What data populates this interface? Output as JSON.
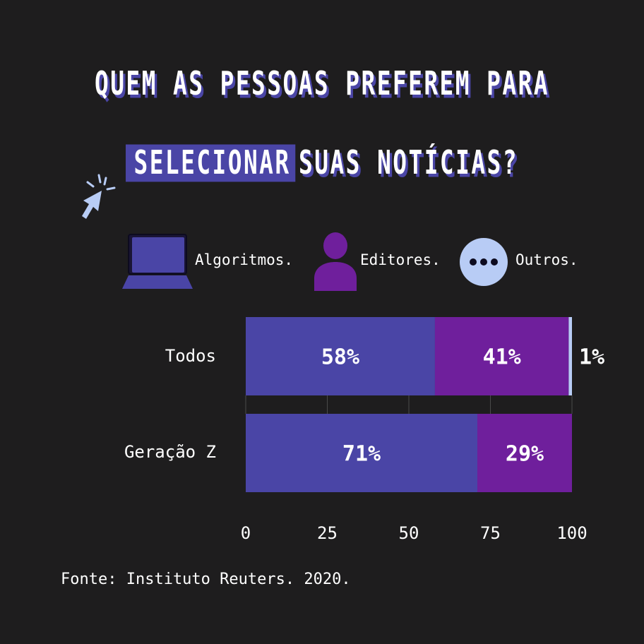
{
  "title": {
    "line1": "QUEM AS PESSOAS PREFEREM PARA",
    "highlight": "SELECIONAR",
    "line2_rest": "SUAS NOTÍCIAS?"
  },
  "legend": [
    {
      "label": "Algoritmos.",
      "icon": "laptop-icon",
      "color": "#4a45a6"
    },
    {
      "label": "Editores.",
      "icon": "person-icon",
      "color": "#6f1f9c"
    },
    {
      "label": "Outros.",
      "icon": "ellipsis-icon",
      "color": "#b8ccf5"
    }
  ],
  "source": "Fonte: Instituto Reuters. 2020.",
  "chart_data": {
    "type": "bar",
    "orientation": "horizontal",
    "stacked": true,
    "categories": [
      "Todos",
      "Geração Z"
    ],
    "series": [
      {
        "name": "Algoritmos.",
        "color": "#4a45a6",
        "values": [
          58,
          71
        ],
        "labels": [
          "58%",
          "71%"
        ]
      },
      {
        "name": "Editores.",
        "color": "#6f1f9c",
        "values": [
          41,
          29
        ],
        "labels": [
          "41%",
          "29%"
        ]
      },
      {
        "name": "Outros.",
        "color": "#b8ccf5",
        "values": [
          1,
          0
        ],
        "labels": [
          "1%",
          ""
        ]
      }
    ],
    "xlim": [
      0,
      100
    ],
    "xticks": [
      "0",
      "25",
      "50",
      "75",
      "100"
    ],
    "grid": true,
    "legend_position": "top"
  }
}
